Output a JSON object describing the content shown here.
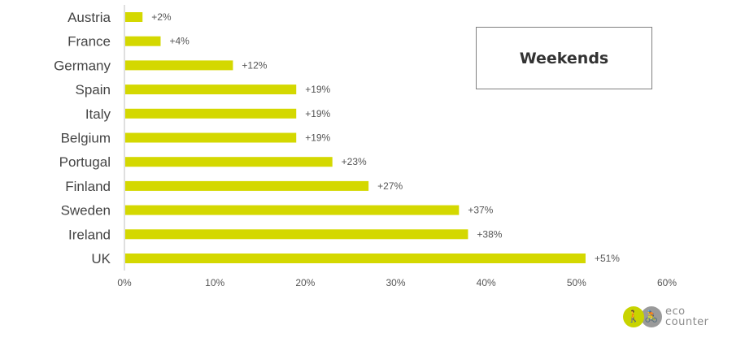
{
  "chart_data": {
    "type": "bar",
    "orientation": "horizontal",
    "categories": [
      "Austria",
      "France",
      "Germany",
      "Spain",
      "Italy",
      "Belgium",
      "Portugal",
      "Finland",
      "Sweden",
      "Ireland",
      "UK"
    ],
    "values": [
      2,
      4,
      12,
      19,
      19,
      19,
      23,
      27,
      37,
      38,
      51
    ],
    "data_labels": [
      "+2%",
      "+4%",
      "+12%",
      "+19%",
      "+19%",
      "+19%",
      "+23%",
      "+27%",
      "+37%",
      "+38%",
      "+51%"
    ],
    "xlim": [
      0,
      60
    ],
    "x_ticks": [
      0,
      10,
      20,
      30,
      40,
      50,
      60
    ],
    "x_tick_labels": [
      "0%",
      "10%",
      "20%",
      "30%",
      "40%",
      "50%",
      "60%"
    ],
    "bar_color": "#d4d800",
    "grid": false,
    "legend_box_text": "Weekends",
    "legend_placement": "top-right"
  },
  "logo": {
    "line1": "eco",
    "line2": "counter",
    "walker_icon": "walker-icon",
    "cyclist_icon": "cyclist-icon",
    "walker_glyph": "🚶",
    "cyclist_glyph": "🚴"
  }
}
